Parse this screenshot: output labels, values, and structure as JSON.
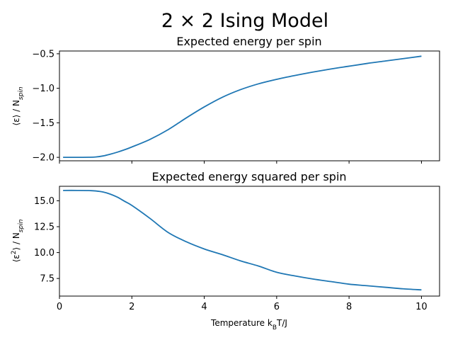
{
  "figure": {
    "suptitle": "2 × 2 Ising Model",
    "xlabel_main": "Temperature k",
    "xlabel_sub": "B",
    "xlabel_rest": "T/J"
  },
  "chart_data": [
    {
      "type": "line",
      "title": "Expected energy per spin",
      "ylabel": "⟨ε⟩ / N_spin",
      "xlim": [
        0,
        10.5
      ],
      "ylim": [
        -2.05,
        -0.46
      ],
      "xticks": [
        0,
        2,
        4,
        6,
        8,
        10
      ],
      "show_xticklabels": false,
      "yticks": [
        -2.0,
        -1.5,
        -1.0,
        -0.5
      ],
      "ytick_labels": [
        "−2.0",
        "−1.5",
        "−1.0",
        "−0.5"
      ],
      "grid": false,
      "series": [
        {
          "color": "#1f77b4",
          "x": [
            0.1,
            0.5,
            0.8,
            1.0,
            1.2,
            1.4,
            1.6,
            1.8,
            2.0,
            2.5,
            3.0,
            3.5,
            4.0,
            4.5,
            5.0,
            5.5,
            6.0,
            6.5,
            7.0,
            7.5,
            8.0,
            8.5,
            9.0,
            9.5,
            10.0
          ],
          "y": [
            -2.0,
            -2.0,
            -1.999,
            -1.995,
            -1.98,
            -1.955,
            -1.925,
            -1.89,
            -1.85,
            -1.74,
            -1.6,
            -1.43,
            -1.27,
            -1.13,
            -1.02,
            -0.935,
            -0.87,
            -0.815,
            -0.765,
            -0.72,
            -0.68,
            -0.64,
            -0.605,
            -0.57,
            -0.535
          ]
        }
      ]
    },
    {
      "type": "line",
      "title": "Expected energy squared per spin",
      "ylabel": "⟨ε²⟩ / N_spin",
      "xlim": [
        0,
        10.5
      ],
      "ylim": [
        5.8,
        16.4
      ],
      "xticks": [
        0,
        2,
        4,
        6,
        8,
        10
      ],
      "xtick_labels": [
        "0",
        "2",
        "4",
        "6",
        "8",
        "10"
      ],
      "yticks": [
        7.5,
        10.0,
        12.5,
        15.0
      ],
      "ytick_labels": [
        "7.5",
        "10.0",
        "12.5",
        "15.0"
      ],
      "grid": false,
      "series": [
        {
          "color": "#1f77b4",
          "x": [
            0.1,
            0.5,
            0.8,
            1.0,
            1.2,
            1.4,
            1.6,
            1.8,
            2.0,
            2.5,
            3.0,
            3.5,
            4.0,
            4.5,
            5.0,
            5.5,
            6.0,
            6.5,
            7.0,
            7.5,
            8.0,
            8.5,
            9.0,
            9.5,
            10.0
          ],
          "y": [
            16.0,
            16.0,
            15.99,
            15.95,
            15.85,
            15.65,
            15.35,
            14.95,
            14.55,
            13.3,
            11.95,
            11.05,
            10.35,
            9.8,
            9.2,
            8.7,
            8.1,
            7.75,
            7.45,
            7.2,
            6.95,
            6.8,
            6.65,
            6.5,
            6.4
          ]
        }
      ]
    }
  ]
}
